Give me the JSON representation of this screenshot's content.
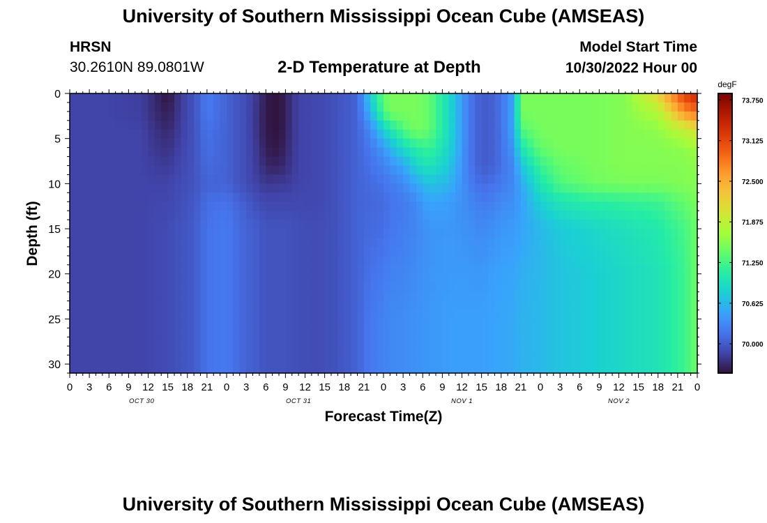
{
  "header": {
    "title": "University of Southern Mississippi Ocean Cube (AMSEAS)",
    "station": "HRSN",
    "coordinates": "30.2610N  89.0801W",
    "subtitle": "2-D Temperature at Depth",
    "model_start_label": "Model Start Time",
    "model_start_value": "10/30/2022 Hour 00"
  },
  "footer": {
    "title": "University of Southern Mississippi Ocean Cube (AMSEAS)"
  },
  "chart_data": {
    "type": "heatmap",
    "title": "2-D Temperature at Depth",
    "xlabel": "Forecast Time(Z)",
    "ylabel": "Depth (ft)",
    "x_range_hours": [
      0,
      96
    ],
    "y_range_ft": [
      0,
      31
    ],
    "x_tick_labels": [
      "0",
      "3",
      "6",
      "9",
      "12",
      "15",
      "18",
      "21",
      "0",
      "3",
      "6",
      "9",
      "12",
      "15",
      "18",
      "21",
      "0",
      "3",
      "6",
      "9",
      "12",
      "15",
      "18",
      "21",
      "0",
      "3",
      "6",
      "9",
      "12",
      "15",
      "18",
      "21",
      "0"
    ],
    "y_ticks": [
      0,
      5,
      10,
      15,
      20,
      25,
      30
    ],
    "date_labels": [
      {
        "label": "OCT 30",
        "hour": 11
      },
      {
        "label": "OCT 31",
        "hour": 35
      },
      {
        "label": "NOV 1",
        "hour": 60
      },
      {
        "label": "NOV 2",
        "hour": 84
      }
    ],
    "colorbar": {
      "unit": "degF",
      "min": 69.55,
      "max": 73.85,
      "tick_values": [
        70.0,
        70.625,
        71.25,
        71.875,
        72.5,
        73.125,
        73.75
      ],
      "tick_labels": [
        "70.000",
        "70.625",
        "71.250",
        "71.875",
        "72.500",
        "73.125",
        "73.750"
      ]
    },
    "colors": [
      "#30123b",
      "#4145ab",
      "#4675ed",
      "#39a2fc",
      "#1bcfd4",
      "#24eca6",
      "#61fc6c",
      "#a4fc3b",
      "#d1e834",
      "#f3c63a",
      "#fe9b2d",
      "#f36315",
      "#d93806",
      "#b11901",
      "#7a0402"
    ],
    "profiles": {
      "depth_knots_ft": [
        0,
        2,
        4,
        6,
        8,
        10,
        12,
        15,
        20,
        25,
        31
      ],
      "time_hours": [
        0,
        6,
        11,
        13,
        15,
        17,
        19,
        21,
        24,
        27,
        29,
        30,
        32,
        33,
        35,
        38,
        41,
        44,
        46,
        48,
        49,
        51,
        53,
        55,
        58,
        61,
        63,
        65,
        66,
        68,
        69,
        72,
        75,
        80,
        85,
        90,
        94,
        96
      ],
      "temperatures_degF": [
        [
          69.85,
          69.85,
          69.85,
          69.85,
          69.85,
          69.85,
          69.85,
          69.85,
          69.85,
          69.85,
          69.85
        ],
        [
          69.85,
          69.85,
          69.85,
          69.85,
          69.85,
          69.85,
          69.85,
          69.85,
          69.85,
          69.85,
          69.85
        ],
        [
          69.82,
          69.82,
          69.85,
          69.85,
          69.85,
          69.85,
          69.85,
          69.85,
          69.85,
          69.85,
          69.85
        ],
        [
          69.7,
          69.7,
          69.75,
          69.78,
          69.82,
          69.85,
          69.87,
          69.88,
          69.88,
          69.88,
          69.88
        ],
        [
          69.55,
          69.62,
          69.68,
          69.74,
          69.8,
          69.85,
          69.87,
          69.9,
          69.9,
          69.9,
          69.9
        ],
        [
          69.8,
          69.8,
          69.82,
          69.85,
          69.87,
          69.9,
          69.92,
          69.95,
          69.95,
          69.95,
          69.95
        ],
        [
          69.95,
          69.95,
          69.95,
          69.95,
          69.95,
          69.95,
          69.98,
          70.0,
          70.0,
          70.0,
          70.0
        ],
        [
          70.2,
          70.2,
          70.15,
          70.12,
          70.1,
          70.05,
          70.12,
          70.15,
          70.15,
          70.15,
          70.15
        ],
        [
          70.05,
          70.05,
          70.05,
          70.05,
          70.05,
          70.05,
          70.15,
          70.2,
          70.2,
          70.2,
          70.2
        ],
        [
          69.9,
          69.9,
          69.9,
          69.9,
          69.9,
          69.9,
          70.0,
          70.05,
          70.05,
          70.05,
          70.05
        ],
        [
          69.75,
          69.72,
          69.72,
          69.75,
          69.78,
          69.82,
          69.9,
          70.0,
          70.0,
          70.0,
          70.0
        ],
        [
          69.6,
          69.6,
          69.6,
          69.62,
          69.68,
          69.78,
          69.88,
          69.95,
          69.95,
          69.95,
          69.95
        ],
        [
          69.55,
          69.55,
          69.55,
          69.58,
          69.65,
          69.8,
          69.88,
          69.95,
          69.95,
          69.95,
          69.95
        ],
        [
          69.65,
          69.65,
          69.65,
          69.68,
          69.72,
          69.8,
          69.88,
          69.95,
          69.95,
          69.95,
          69.95
        ],
        [
          69.85,
          69.85,
          69.85,
          69.85,
          69.85,
          69.85,
          69.88,
          69.92,
          69.92,
          69.92,
          69.92
        ],
        [
          69.88,
          69.88,
          69.88,
          69.88,
          69.88,
          69.88,
          69.88,
          69.9,
          69.9,
          69.9,
          69.9
        ],
        [
          69.95,
          69.95,
          69.95,
          69.95,
          69.95,
          69.95,
          69.95,
          69.95,
          69.95,
          69.95,
          69.95
        ],
        [
          70.05,
          70.05,
          70.05,
          70.05,
          70.05,
          70.05,
          70.05,
          70.05,
          70.05,
          70.05,
          70.05
        ],
        [
          70.8,
          70.6,
          70.3,
          70.2,
          70.15,
          70.1,
          70.08,
          70.1,
          70.15,
          70.2,
          70.2
        ],
        [
          71.4,
          71.3,
          70.8,
          70.4,
          70.25,
          70.15,
          70.1,
          70.12,
          70.2,
          70.25,
          70.25
        ],
        [
          71.5,
          71.5,
          71.0,
          70.6,
          70.35,
          70.2,
          70.15,
          70.18,
          70.25,
          70.3,
          70.3
        ],
        [
          71.5,
          71.5,
          71.3,
          70.9,
          70.5,
          70.3,
          70.2,
          70.22,
          70.28,
          70.32,
          70.32
        ],
        [
          71.5,
          71.5,
          71.5,
          71.1,
          70.85,
          70.5,
          70.3,
          70.28,
          70.32,
          70.36,
          70.36
        ],
        [
          71.4,
          71.4,
          71.4,
          71.2,
          71.0,
          70.7,
          70.5,
          70.38,
          70.38,
          70.4,
          70.4
        ],
        [
          70.9,
          70.9,
          70.9,
          70.85,
          70.75,
          70.6,
          70.45,
          70.4,
          70.42,
          70.44,
          70.44
        ],
        [
          70.2,
          70.2,
          70.2,
          70.2,
          70.2,
          70.25,
          70.3,
          70.35,
          70.42,
          70.45,
          70.45
        ],
        [
          70.0,
          70.0,
          70.0,
          70.0,
          70.0,
          70.1,
          70.2,
          70.3,
          70.4,
          70.45,
          70.45
        ],
        [
          70.05,
          70.05,
          70.05,
          70.05,
          70.05,
          70.15,
          70.25,
          70.35,
          70.45,
          70.48,
          70.48
        ],
        [
          70.15,
          70.15,
          70.15,
          70.15,
          70.15,
          70.2,
          70.3,
          70.4,
          70.48,
          70.5,
          70.5
        ],
        [
          70.5,
          70.5,
          70.5,
          70.4,
          70.3,
          70.3,
          70.35,
          70.42,
          70.5,
          70.52,
          70.52
        ],
        [
          71.5,
          71.5,
          71.3,
          71.0,
          70.7,
          70.5,
          70.45,
          70.48,
          70.55,
          70.58,
          70.58
        ],
        [
          71.5,
          71.5,
          71.5,
          71.4,
          71.2,
          71.0,
          70.8,
          70.62,
          70.62,
          70.62,
          70.62
        ],
        [
          71.5,
          71.5,
          71.5,
          71.5,
          71.4,
          71.3,
          71.0,
          70.75,
          70.7,
          70.7,
          70.7
        ],
        [
          71.5,
          71.5,
          71.5,
          71.5,
          71.5,
          71.45,
          71.1,
          70.85,
          70.78,
          70.78,
          70.78
        ],
        [
          71.55,
          71.55,
          71.55,
          71.55,
          71.55,
          71.5,
          71.15,
          70.95,
          70.88,
          70.88,
          70.88
        ],
        [
          72.2,
          71.8,
          71.6,
          71.55,
          71.55,
          71.5,
          71.2,
          71.05,
          70.98,
          70.98,
          70.98
        ],
        [
          73.2,
          72.7,
          71.9,
          71.6,
          71.55,
          71.55,
          71.4,
          71.25,
          71.2,
          71.2,
          71.2
        ],
        [
          73.4,
          72.9,
          72.1,
          71.7,
          71.6,
          71.55,
          71.5,
          71.45,
          71.45,
          71.45,
          71.45
        ]
      ]
    }
  }
}
